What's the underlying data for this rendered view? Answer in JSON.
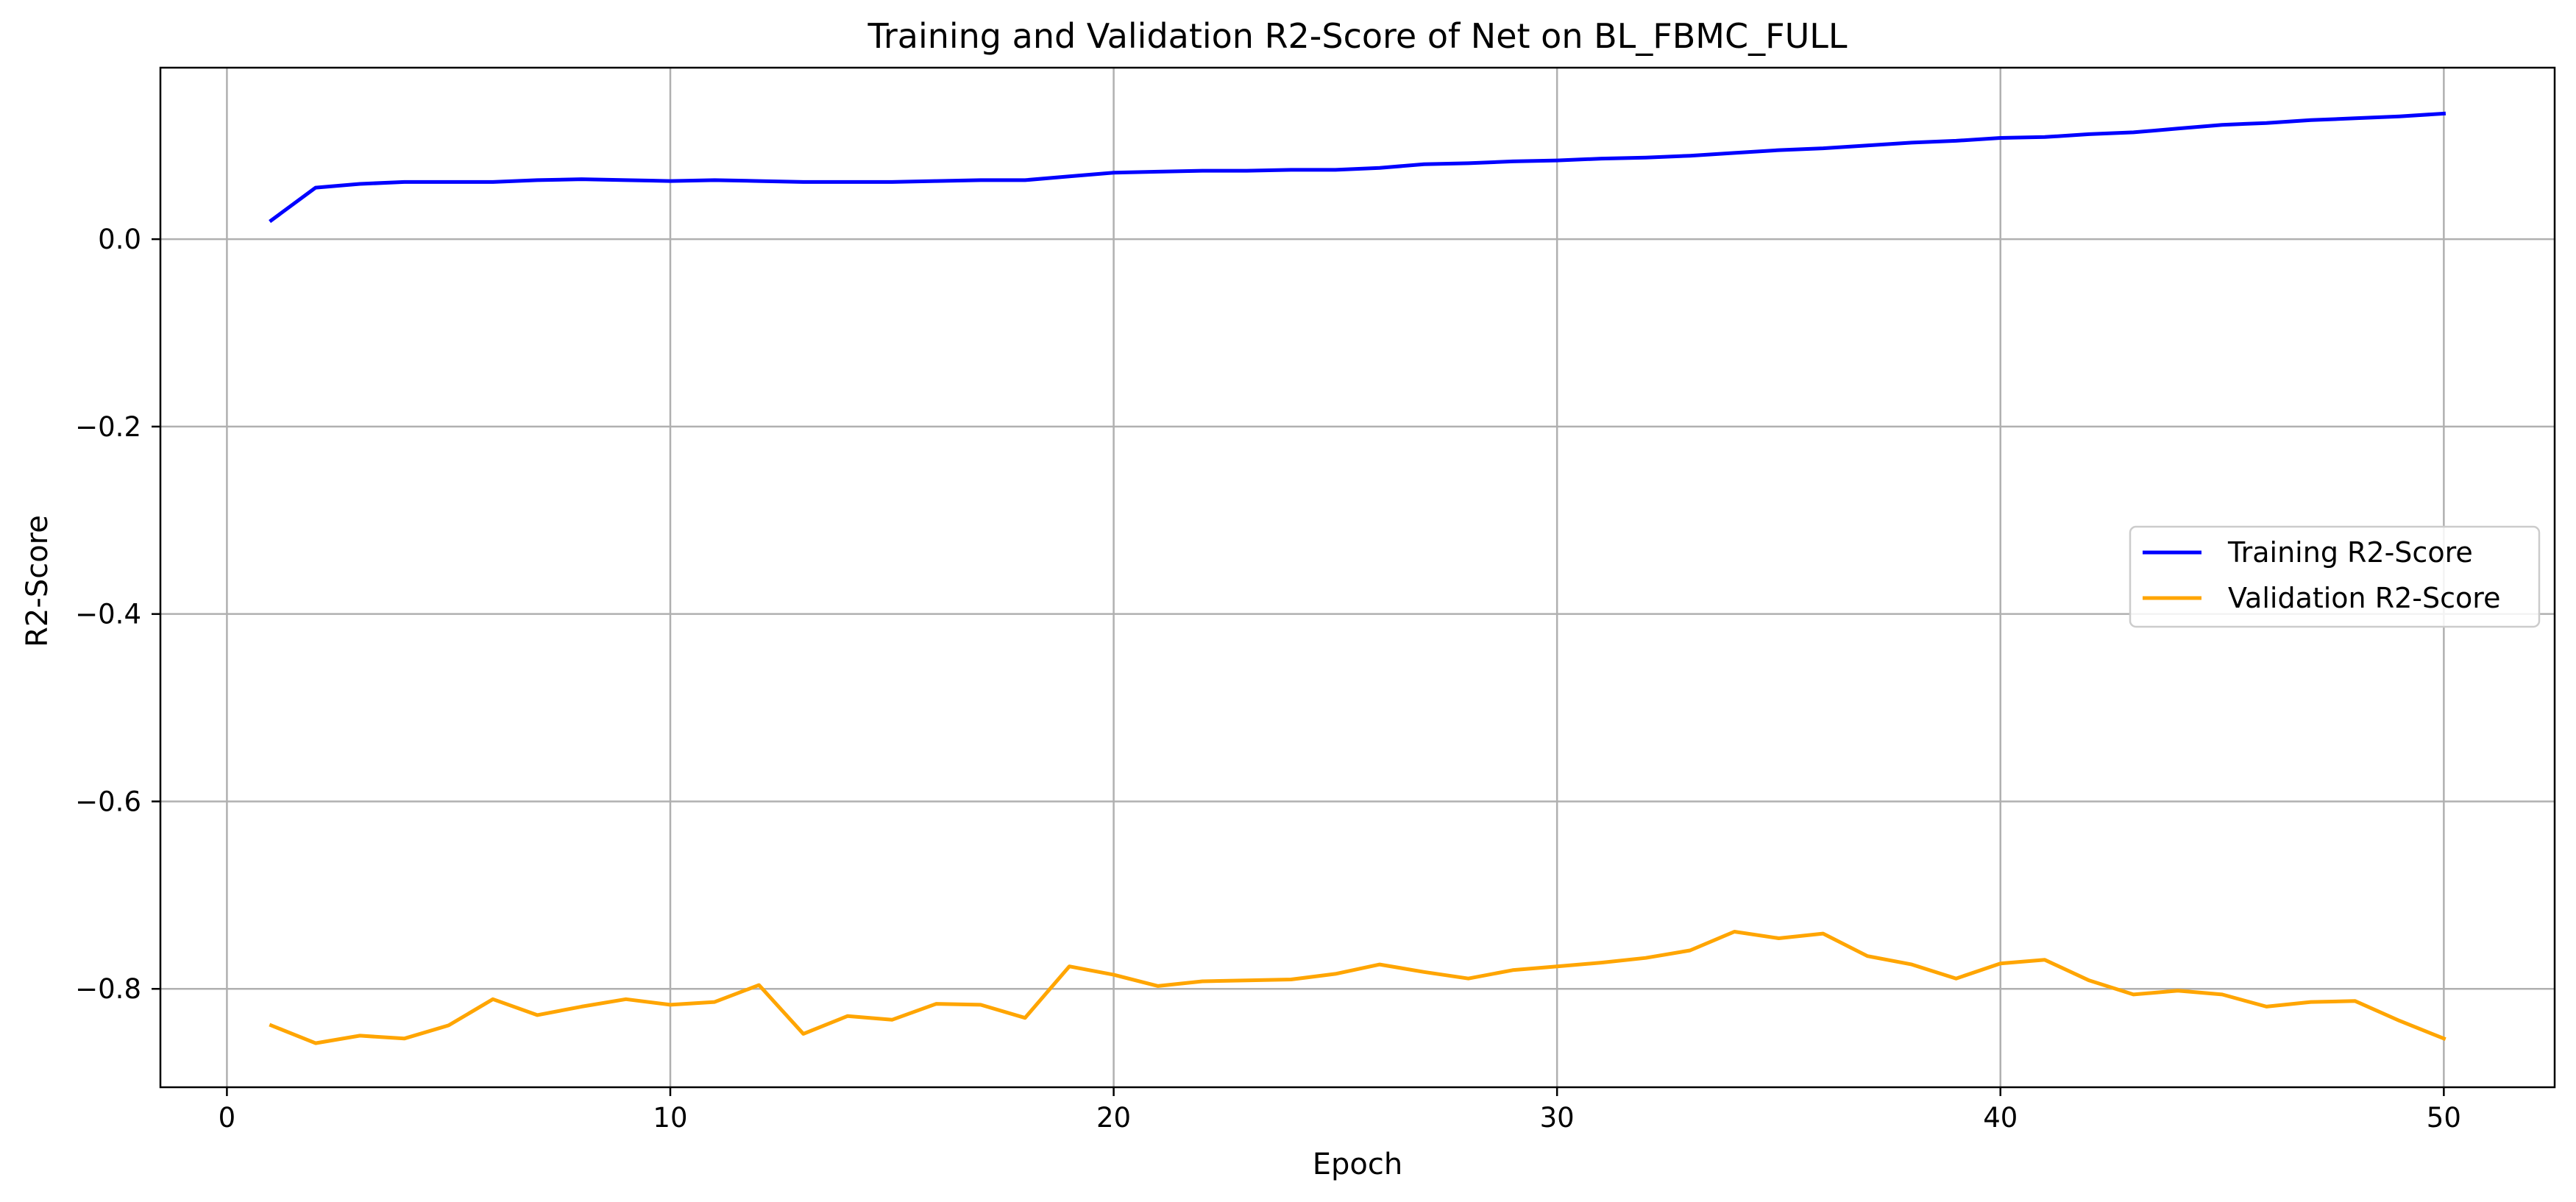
{
  "chart_data": {
    "type": "line",
    "title": "Training and Validation R2-Score of Net on BL_FBMC_FULL",
    "xlabel": "Epoch",
    "ylabel": "R2-Score",
    "xlim": [
      -1.5,
      52.5
    ],
    "ylim": [
      -0.905,
      0.183
    ],
    "xticks": [
      0,
      10,
      20,
      30,
      40,
      50
    ],
    "yticks": [
      0.0,
      -0.2,
      -0.4,
      -0.6,
      -0.8
    ],
    "ytick_labels": [
      "0.0",
      "−0.2",
      "−0.4",
      "−0.6",
      "−0.8"
    ],
    "xtick_labels": [
      "0",
      "10",
      "20",
      "30",
      "40",
      "50"
    ],
    "grid": true,
    "legend_position": "center-right",
    "x": [
      1,
      2,
      3,
      4,
      5,
      6,
      7,
      8,
      9,
      10,
      11,
      12,
      13,
      14,
      15,
      16,
      17,
      18,
      19,
      20,
      21,
      22,
      23,
      24,
      25,
      26,
      27,
      28,
      29,
      30,
      31,
      32,
      33,
      34,
      35,
      36,
      37,
      38,
      39,
      40,
      41,
      42,
      43,
      44,
      45,
      46,
      47,
      48,
      49,
      50
    ],
    "series": [
      {
        "name": "Training R2-Score",
        "color": "#0000ff",
        "values": [
          0.02,
          0.055,
          0.059,
          0.061,
          0.061,
          0.061,
          0.063,
          0.064,
          0.063,
          0.062,
          0.063,
          0.062,
          0.061,
          0.061,
          0.061,
          0.062,
          0.063,
          0.063,
          0.067,
          0.071,
          0.072,
          0.073,
          0.073,
          0.074,
          0.074,
          0.076,
          0.08,
          0.081,
          0.083,
          0.084,
          0.086,
          0.087,
          0.089,
          0.092,
          0.095,
          0.097,
          0.1,
          0.103,
          0.105,
          0.108,
          0.109,
          0.112,
          0.114,
          0.118,
          0.122,
          0.124,
          0.127,
          0.129,
          0.131,
          0.134
        ]
      },
      {
        "name": "Validation R2-Score",
        "color": "#ffa500",
        "values": [
          -0.839,
          -0.858,
          -0.85,
          -0.853,
          -0.839,
          -0.811,
          -0.828,
          -0.819,
          -0.811,
          -0.817,
          -0.814,
          -0.796,
          -0.848,
          -0.829,
          -0.833,
          -0.816,
          -0.817,
          -0.831,
          -0.776,
          -0.785,
          -0.797,
          -0.792,
          -0.791,
          -0.79,
          -0.784,
          -0.774,
          -0.782,
          -0.789,
          -0.78,
          -0.776,
          -0.772,
          -0.767,
          -0.759,
          -0.739,
          -0.746,
          -0.741,
          -0.765,
          -0.774,
          -0.789,
          -0.773,
          -0.769,
          -0.791,
          -0.806,
          -0.802,
          -0.806,
          -0.819,
          -0.814,
          -0.813,
          -0.834,
          -0.853
        ]
      }
    ]
  }
}
